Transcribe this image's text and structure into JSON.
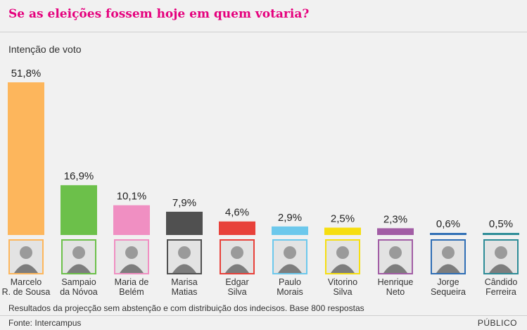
{
  "title": "Se as eleições fossem hoje em quem votaria?",
  "subtitle": "Intenção de voto",
  "note": "Resultados da projecção sem abstenção e com distribuição dos indecisos. Base 800 respostas",
  "source": "Fonte: Intercampus",
  "brand": "PÚBLICO",
  "chart_data": {
    "type": "bar",
    "categories": [
      [
        "Marcelo",
        "R. de Sousa"
      ],
      [
        "Sampaio",
        "da Nóvoa"
      ],
      [
        "Maria de",
        "Belém"
      ],
      [
        "Marisa",
        "Matias"
      ],
      [
        "Edgar",
        "Silva"
      ],
      [
        "Paulo",
        "Morais"
      ],
      [
        "Vitorino",
        "Silva"
      ],
      [
        "Henrique",
        "Neto"
      ],
      [
        "Jorge",
        "Sequeira"
      ],
      [
        "Cândido",
        "Ferreira"
      ]
    ],
    "values": [
      51.8,
      16.9,
      10.1,
      7.9,
      4.6,
      2.9,
      2.5,
      2.3,
      0.6,
      0.5
    ],
    "value_labels": [
      "51,8%",
      "16,9%",
      "10,1%",
      "7,9%",
      "4,6%",
      "2,9%",
      "2,5%",
      "2,3%",
      "0,6%",
      "0,5%"
    ],
    "colors": [
      "#fdb65c",
      "#6cc04a",
      "#f08fc2",
      "#505050",
      "#e8413a",
      "#6cc8ec",
      "#f6de10",
      "#a25da5",
      "#2f6eb5",
      "#2d8c97"
    ],
    "ylim": [
      0,
      51.8
    ]
  }
}
